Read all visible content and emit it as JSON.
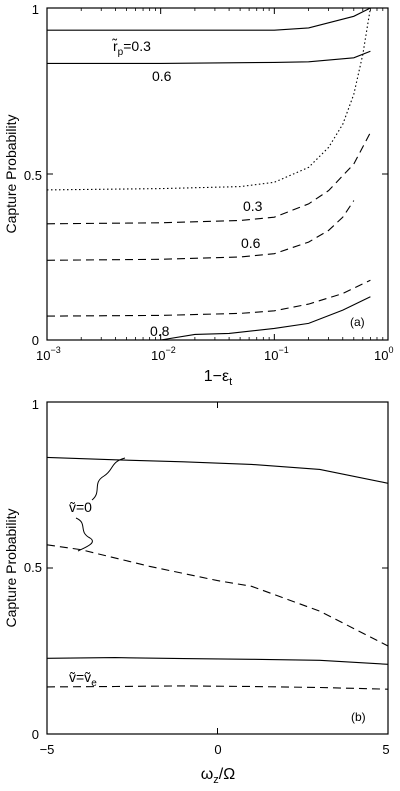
{
  "chart_data": [
    {
      "type": "line",
      "panel_label": "(a)",
      "xscale": "log",
      "xlim": [
        0.001,
        1
      ],
      "ylim": [
        0,
        1
      ],
      "xticks": [
        0.001,
        0.01,
        0.1,
        1
      ],
      "xtick_labels": [
        "10",
        "10",
        "10",
        "10"
      ],
      "xtick_exponents": [
        "−3",
        "−2",
        "−1",
        "0"
      ],
      "yticks": [
        0,
        0.5,
        1
      ],
      "ytick_labels": [
        "0",
        "0.5",
        "1"
      ],
      "xlabel_main": "1−ε",
      "xlabel_sub": "t",
      "ylabel": "Capture Probability",
      "series": [
        {
          "style": "solid",
          "x": [
            0.001,
            0.01,
            0.1,
            0.2,
            0.5,
            0.7
          ],
          "y": [
            0.933,
            0.933,
            0.933,
            0.94,
            0.975,
            1.0
          ]
        },
        {
          "style": "solid",
          "x": [
            0.001,
            0.01,
            0.1,
            0.2,
            0.5,
            0.7
          ],
          "y": [
            0.833,
            0.833,
            0.836,
            0.838,
            0.85,
            0.87
          ]
        },
        {
          "style": "dotted",
          "x": [
            0.001,
            0.01,
            0.05,
            0.1,
            0.2,
            0.3,
            0.4,
            0.5,
            0.6,
            0.7
          ],
          "y": [
            0.452,
            0.456,
            0.462,
            0.475,
            0.52,
            0.58,
            0.65,
            0.74,
            0.86,
            1.0
          ]
        },
        {
          "style": "dashed",
          "x": [
            0.001,
            0.01,
            0.05,
            0.1,
            0.2,
            0.3,
            0.5,
            0.7
          ],
          "y": [
            0.35,
            0.353,
            0.36,
            0.37,
            0.41,
            0.45,
            0.53,
            0.625
          ]
        },
        {
          "style": "dashed",
          "x": [
            0.001,
            0.01,
            0.05,
            0.1,
            0.2,
            0.3,
            0.4,
            0.5
          ],
          "y": [
            0.24,
            0.243,
            0.25,
            0.26,
            0.295,
            0.33,
            0.37,
            0.42
          ]
        },
        {
          "style": "dashed",
          "x": [
            0.001,
            0.01,
            0.05,
            0.1,
            0.2,
            0.4,
            0.7
          ],
          "y": [
            0.072,
            0.074,
            0.08,
            0.088,
            0.108,
            0.14,
            0.18
          ]
        },
        {
          "style": "solid",
          "x": [
            0.01,
            0.02,
            0.04,
            0.1,
            0.2,
            0.4,
            0.7
          ],
          "y": [
            0.0,
            0.017,
            0.02,
            0.035,
            0.05,
            0.09,
            0.13
          ]
        }
      ],
      "annotations": {
        "rp_prefix": "r̃",
        "rp_sub": "p",
        "rp_value": "=0.3",
        "a1": "0.6",
        "a2": "0.3",
        "a3": "0.6",
        "a4": "0.8"
      }
    },
    {
      "type": "line",
      "panel_label": "(b)",
      "xlim": [
        -5,
        5
      ],
      "ylim": [
        0,
        1
      ],
      "xticks": [
        -5,
        0,
        5
      ],
      "xtick_labels": [
        "−5",
        "0",
        "5"
      ],
      "yticks": [
        0,
        0.5,
        1
      ],
      "ytick_labels": [
        "0",
        "0.5",
        "1"
      ],
      "xlabel_main": "ω",
      "xlabel_sub": "z",
      "xlabel_rest": "/Ω",
      "ylabel": "Capture Probability",
      "series": [
        {
          "style": "solid",
          "x": [
            -5,
            -3,
            -1,
            1,
            3,
            5
          ],
          "y": [
            0.833,
            0.826,
            0.82,
            0.812,
            0.797,
            0.755
          ]
        },
        {
          "style": "dashed",
          "x": [
            -5,
            -4,
            -2,
            0,
            1,
            3,
            5
          ],
          "y": [
            0.57,
            0.555,
            0.505,
            0.462,
            0.445,
            0.37,
            0.265
          ]
        },
        {
          "style": "solid",
          "x": [
            -5,
            -3,
            -1,
            1,
            3,
            5
          ],
          "y": [
            0.228,
            0.23,
            0.227,
            0.225,
            0.222,
            0.21
          ]
        },
        {
          "style": "dashed",
          "x": [
            -5,
            -3,
            -1,
            1,
            3,
            5
          ],
          "y": [
            0.142,
            0.143,
            0.145,
            0.143,
            0.14,
            0.135
          ]
        }
      ],
      "annotations": {
        "v0": "ṽ=0",
        "ve_main": "ṽ=ṽ",
        "ve_sub": "e"
      }
    }
  ]
}
